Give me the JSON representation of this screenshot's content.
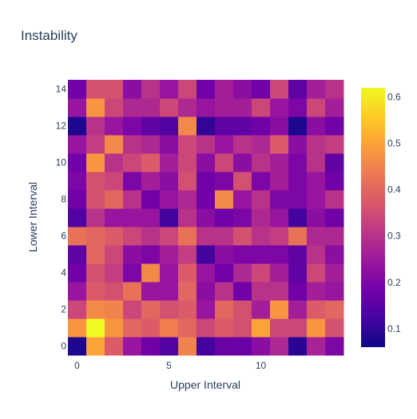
{
  "chart_data": {
    "type": "heatmap",
    "title": "Instability",
    "xlabel": "Upper Interval",
    "ylabel": "Lower Interval",
    "x": [
      0,
      1,
      2,
      3,
      4,
      5,
      6,
      7,
      8,
      9,
      10,
      11,
      12,
      13,
      14
    ],
    "y": [
      0,
      1,
      2,
      3,
      4,
      5,
      6,
      7,
      8,
      9,
      10,
      11,
      12,
      13,
      14
    ],
    "x_tickvals": [
      0,
      5,
      10
    ],
    "y_tickvals": [
      0,
      2,
      4,
      6,
      8,
      10,
      12,
      14
    ],
    "colorscale": "Plasma",
    "zmin": 0.06,
    "zmax": 0.62,
    "colorbar_ticks": [
      0.1,
      0.2,
      0.3,
      0.4,
      0.5,
      0.6
    ],
    "z": [
      [
        0.08,
        0.5,
        0.38,
        0.24,
        0.18,
        0.14,
        0.45,
        0.12,
        0.17,
        0.17,
        0.22,
        0.28,
        0.09,
        0.27,
        0.2
      ],
      [
        0.48,
        0.62,
        0.48,
        0.4,
        0.38,
        0.44,
        0.4,
        0.34,
        0.38,
        0.36,
        0.5,
        0.34,
        0.34,
        0.48,
        0.36
      ],
      [
        0.34,
        0.46,
        0.45,
        0.34,
        0.4,
        0.36,
        0.38,
        0.24,
        0.4,
        0.36,
        0.26,
        0.48,
        0.26,
        0.38,
        0.4
      ],
      [
        0.24,
        0.38,
        0.36,
        0.42,
        0.24,
        0.24,
        0.4,
        0.22,
        0.3,
        0.18,
        0.3,
        0.3,
        0.18,
        0.26,
        0.24
      ],
      [
        0.18,
        0.36,
        0.32,
        0.2,
        0.46,
        0.24,
        0.38,
        0.24,
        0.18,
        0.28,
        0.34,
        0.26,
        0.16,
        0.34,
        0.26
      ],
      [
        0.16,
        0.4,
        0.34,
        0.22,
        0.2,
        0.26,
        0.32,
        0.12,
        0.22,
        0.2,
        0.2,
        0.2,
        0.16,
        0.3,
        0.22
      ],
      [
        0.42,
        0.4,
        0.38,
        0.34,
        0.3,
        0.34,
        0.42,
        0.3,
        0.3,
        0.36,
        0.3,
        0.32,
        0.42,
        0.28,
        0.28
      ],
      [
        0.14,
        0.3,
        0.24,
        0.24,
        0.24,
        0.12,
        0.3,
        0.22,
        0.18,
        0.2,
        0.28,
        0.24,
        0.12,
        0.22,
        0.18
      ],
      [
        0.18,
        0.36,
        0.4,
        0.3,
        0.18,
        0.24,
        0.28,
        0.18,
        0.46,
        0.24,
        0.3,
        0.2,
        0.2,
        0.24,
        0.3
      ],
      [
        0.2,
        0.36,
        0.34,
        0.2,
        0.26,
        0.22,
        0.36,
        0.18,
        0.2,
        0.36,
        0.2,
        0.26,
        0.2,
        0.24,
        0.18
      ],
      [
        0.18,
        0.48,
        0.3,
        0.34,
        0.38,
        0.26,
        0.34,
        0.22,
        0.34,
        0.22,
        0.3,
        0.26,
        0.2,
        0.3,
        0.16
      ],
      [
        0.24,
        0.32,
        0.46,
        0.3,
        0.28,
        0.22,
        0.34,
        0.3,
        0.24,
        0.3,
        0.28,
        0.38,
        0.22,
        0.3,
        0.32
      ],
      [
        0.08,
        0.3,
        0.24,
        0.2,
        0.16,
        0.14,
        0.46,
        0.1,
        0.16,
        0.16,
        0.18,
        0.22,
        0.08,
        0.22,
        0.18
      ],
      [
        0.24,
        0.48,
        0.34,
        0.28,
        0.28,
        0.34,
        0.28,
        0.24,
        0.26,
        0.26,
        0.34,
        0.24,
        0.2,
        0.34,
        0.26
      ],
      [
        0.18,
        0.36,
        0.36,
        0.22,
        0.3,
        0.24,
        0.34,
        0.18,
        0.26,
        0.22,
        0.18,
        0.34,
        0.16,
        0.26,
        0.3
      ]
    ]
  }
}
